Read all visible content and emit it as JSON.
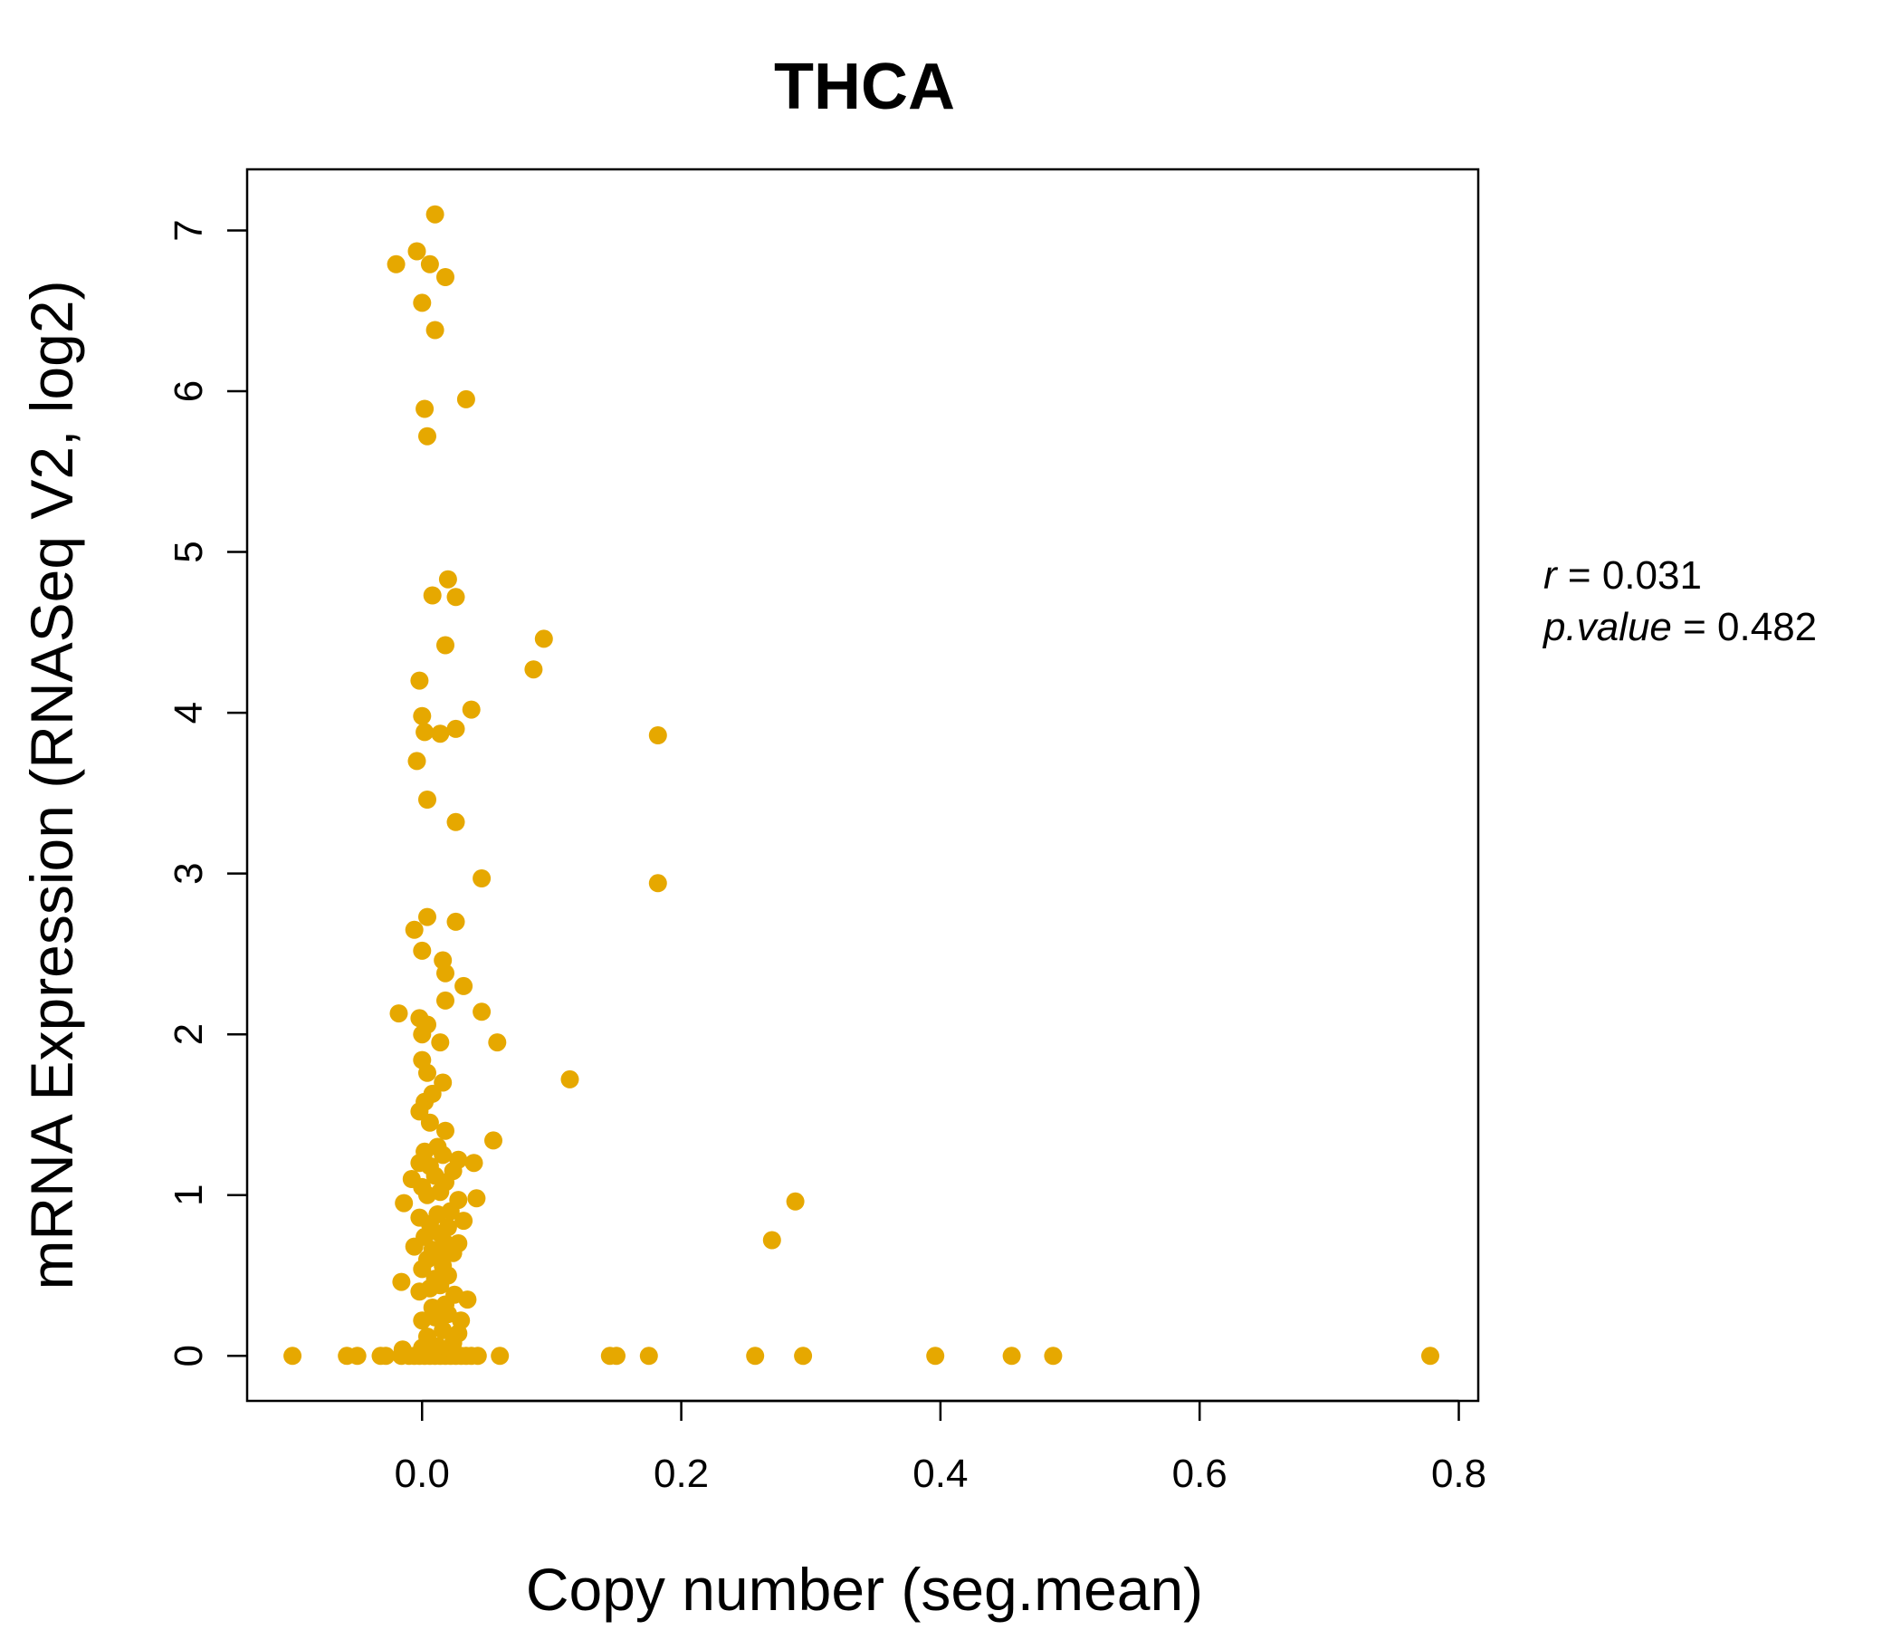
{
  "chart_data": {
    "type": "scatter",
    "title": "THCA",
    "xlabel": "Copy number (seg.mean)",
    "ylabel": "mRNA Expression (RNASeq V2, log2)",
    "xlim": [
      -0.135,
      0.815
    ],
    "ylim": [
      -0.28,
      7.38
    ],
    "x_ticks": [
      0.0,
      0.2,
      0.4,
      0.6,
      0.8
    ],
    "x_tick_labels": [
      "0.0",
      "0.2",
      "0.4",
      "0.6",
      "0.8"
    ],
    "y_ticks": [
      0,
      1,
      2,
      3,
      4,
      5,
      6,
      7
    ],
    "y_tick_labels": [
      "0",
      "1",
      "2",
      "3",
      "4",
      "5",
      "6",
      "7"
    ],
    "grid": false,
    "point_color": "#E6A800",
    "stats": {
      "r_label": "r",
      "r_value": "0.031",
      "p_label": "p.value",
      "p_value": "0.482"
    },
    "points": [
      [
        -0.1,
        0
      ],
      [
        -0.058,
        0
      ],
      [
        -0.05,
        0
      ],
      [
        -0.032,
        0
      ],
      [
        -0.028,
        0
      ],
      [
        -0.016,
        0
      ],
      [
        -0.01,
        0
      ],
      [
        -0.006,
        0
      ],
      [
        -0.002,
        0
      ],
      [
        0.002,
        0
      ],
      [
        0.006,
        0
      ],
      [
        0.01,
        0
      ],
      [
        0.014,
        0
      ],
      [
        0.018,
        0
      ],
      [
        0.022,
        0
      ],
      [
        0.026,
        0
      ],
      [
        0.03,
        0
      ],
      [
        0.034,
        0
      ],
      [
        0.038,
        0
      ],
      [
        0.043,
        0
      ],
      [
        0.06,
        0
      ],
      [
        0.145,
        0
      ],
      [
        0.15,
        0
      ],
      [
        0.175,
        0
      ],
      [
        0.257,
        0
      ],
      [
        0.294,
        0
      ],
      [
        0.396,
        0
      ],
      [
        0.455,
        0
      ],
      [
        0.487,
        0
      ],
      [
        0.778,
        0
      ],
      [
        -0.015,
        0.04
      ],
      [
        0.0,
        0.05
      ],
      [
        0.012,
        0.06
      ],
      [
        0.024,
        0.08
      ],
      [
        0.004,
        0.12
      ],
      [
        0.028,
        0.14
      ],
      [
        0.016,
        0.16
      ],
      [
        0.0,
        0.22
      ],
      [
        0.01,
        0.24
      ],
      [
        0.02,
        0.26
      ],
      [
        0.03,
        0.22
      ],
      [
        0.008,
        0.3
      ],
      [
        0.018,
        0.32
      ],
      [
        0.035,
        0.35
      ],
      [
        0.025,
        0.38
      ],
      [
        -0.002,
        0.4
      ],
      [
        0.006,
        0.42
      ],
      [
        0.014,
        0.44
      ],
      [
        -0.016,
        0.46
      ],
      [
        0.01,
        0.48
      ],
      [
        0.02,
        0.5
      ],
      [
        0.0,
        0.54
      ],
      [
        0.016,
        0.56
      ],
      [
        0.004,
        0.6
      ],
      [
        0.012,
        0.62
      ],
      [
        0.024,
        0.64
      ],
      [
        0.008,
        0.66
      ],
      [
        -0.006,
        0.68
      ],
      [
        0.018,
        0.7
      ],
      [
        0.028,
        0.7
      ],
      [
        0.002,
        0.74
      ],
      [
        0.014,
        0.76
      ],
      [
        0.02,
        0.8
      ],
      [
        0.006,
        0.82
      ],
      [
        0.032,
        0.84
      ],
      [
        -0.002,
        0.86
      ],
      [
        0.012,
        0.88
      ],
      [
        0.022,
        0.9
      ],
      [
        -0.014,
        0.95
      ],
      [
        0.028,
        0.97
      ],
      [
        0.042,
        0.98
      ],
      [
        0.004,
        1.0
      ],
      [
        0.014,
        1.02
      ],
      [
        0.0,
        1.05
      ],
      [
        0.018,
        1.08
      ],
      [
        -0.008,
        1.1
      ],
      [
        0.01,
        1.12
      ],
      [
        0.024,
        1.15
      ],
      [
        0.006,
        1.18
      ],
      [
        -0.002,
        1.2
      ],
      [
        0.028,
        1.22
      ],
      [
        0.04,
        1.2
      ],
      [
        0.016,
        1.25
      ],
      [
        0.002,
        1.27
      ],
      [
        0.012,
        1.3
      ],
      [
        0.055,
        1.34
      ],
      [
        0.018,
        1.4
      ],
      [
        0.006,
        1.45
      ],
      [
        -0.002,
        1.52
      ],
      [
        0.002,
        1.58
      ],
      [
        0.008,
        1.63
      ],
      [
        0.016,
        1.7
      ],
      [
        0.114,
        1.72
      ],
      [
        0.004,
        1.76
      ],
      [
        0.0,
        1.84
      ],
      [
        0.014,
        1.95
      ],
      [
        0.058,
        1.95
      ],
      [
        0.0,
        2.0
      ],
      [
        0.004,
        2.06
      ],
      [
        -0.002,
        2.1
      ],
      [
        -0.018,
        2.13
      ],
      [
        0.046,
        2.14
      ],
      [
        0.018,
        2.21
      ],
      [
        0.032,
        2.3
      ],
      [
        0.018,
        2.38
      ],
      [
        0.016,
        2.46
      ],
      [
        0.0,
        2.52
      ],
      [
        -0.006,
        2.65
      ],
      [
        0.026,
        2.7
      ],
      [
        0.004,
        2.73
      ],
      [
        0.182,
        2.94
      ],
      [
        0.046,
        2.97
      ],
      [
        0.026,
        3.32
      ],
      [
        0.004,
        3.46
      ],
      [
        -0.004,
        3.7
      ],
      [
        0.002,
        3.88
      ],
      [
        0.014,
        3.87
      ],
      [
        0.026,
        3.9
      ],
      [
        0.0,
        3.98
      ],
      [
        0.038,
        4.02
      ],
      [
        0.182,
        3.86
      ],
      [
        -0.002,
        4.2
      ],
      [
        0.086,
        4.27
      ],
      [
        0.018,
        4.42
      ],
      [
        0.094,
        4.46
      ],
      [
        0.008,
        4.73
      ],
      [
        0.026,
        4.72
      ],
      [
        0.02,
        4.83
      ],
      [
        0.004,
        5.72
      ],
      [
        0.002,
        5.89
      ],
      [
        0.034,
        5.95
      ],
      [
        0.01,
        6.38
      ],
      [
        0.0,
        6.55
      ],
      [
        0.018,
        6.71
      ],
      [
        -0.02,
        6.79
      ],
      [
        0.006,
        6.79
      ],
      [
        -0.004,
        6.87
      ],
      [
        0.01,
        7.1
      ],
      [
        0.27,
        0.72
      ],
      [
        0.288,
        0.96
      ]
    ]
  }
}
